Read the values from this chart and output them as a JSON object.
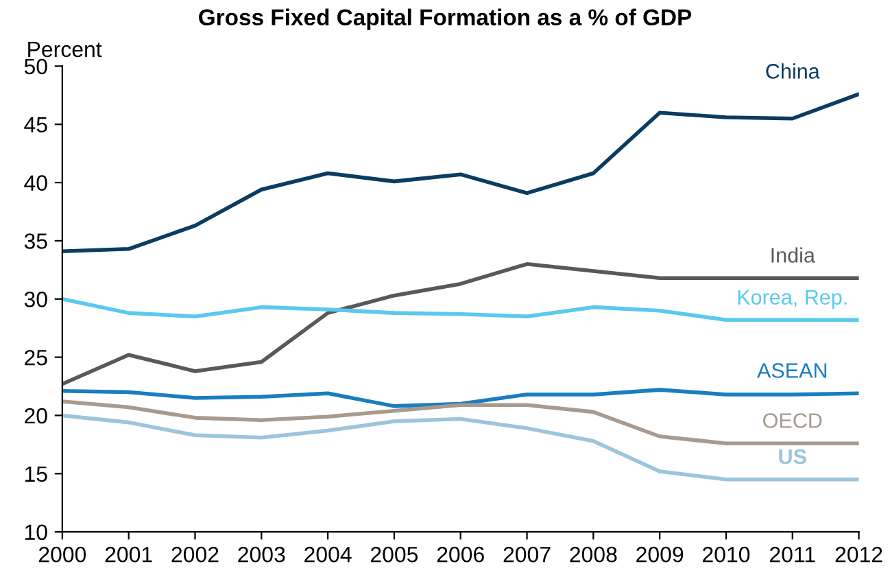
{
  "chart_data": {
    "type": "line",
    "title": "Gross Fixed Capital Formation as a % of GDP",
    "ylabel": "Percent",
    "x": [
      2000,
      2001,
      2002,
      2003,
      2004,
      2005,
      2006,
      2007,
      2008,
      2009,
      2010,
      2011,
      2012
    ],
    "xlim": [
      2000,
      2012
    ],
    "xticks": [
      2000,
      2001,
      2002,
      2003,
      2004,
      2005,
      2006,
      2007,
      2008,
      2009,
      2010,
      2011,
      2012
    ],
    "ylim": [
      10,
      50
    ],
    "yticks": [
      10,
      15,
      20,
      25,
      30,
      35,
      40,
      45,
      50
    ],
    "grid": false,
    "legend": false,
    "marker": "none",
    "line_style": "solid",
    "series": [
      {
        "name": "China",
        "color": "#0b3c61",
        "values": [
          34.1,
          34.3,
          36.3,
          39.4,
          40.8,
          40.1,
          40.7,
          39.1,
          40.8,
          46.0,
          45.6,
          45.5,
          47.6
        ]
      },
      {
        "name": "India",
        "color": "#595959",
        "values": [
          22.7,
          25.2,
          23.8,
          24.6,
          28.8,
          30.3,
          31.3,
          33.0,
          32.4,
          31.8,
          31.8,
          31.8,
          31.8
        ]
      },
      {
        "name": "Korea, Rep.",
        "color": "#5bc8f0",
        "values": [
          30.0,
          28.8,
          28.5,
          29.3,
          29.1,
          28.8,
          28.7,
          28.5,
          29.3,
          29.0,
          28.2,
          28.2,
          28.2
        ]
      },
      {
        "name": "ASEAN",
        "color": "#1a7dc0",
        "values": [
          22.1,
          22.0,
          21.5,
          21.6,
          21.9,
          20.8,
          21.0,
          21.8,
          21.8,
          22.2,
          21.8,
          21.8,
          21.9
        ]
      },
      {
        "name": "OECD",
        "color": "#a89a8e",
        "values": [
          21.2,
          20.7,
          19.8,
          19.6,
          19.9,
          20.4,
          20.9,
          20.9,
          20.3,
          18.2,
          17.6,
          17.6,
          17.6
        ]
      },
      {
        "name": "US",
        "color": "#9cc4dc",
        "values": [
          20.0,
          19.4,
          18.3,
          18.1,
          18.7,
          19.5,
          19.7,
          18.9,
          17.8,
          15.2,
          14.5,
          14.5,
          14.5
        ]
      }
    ]
  }
}
